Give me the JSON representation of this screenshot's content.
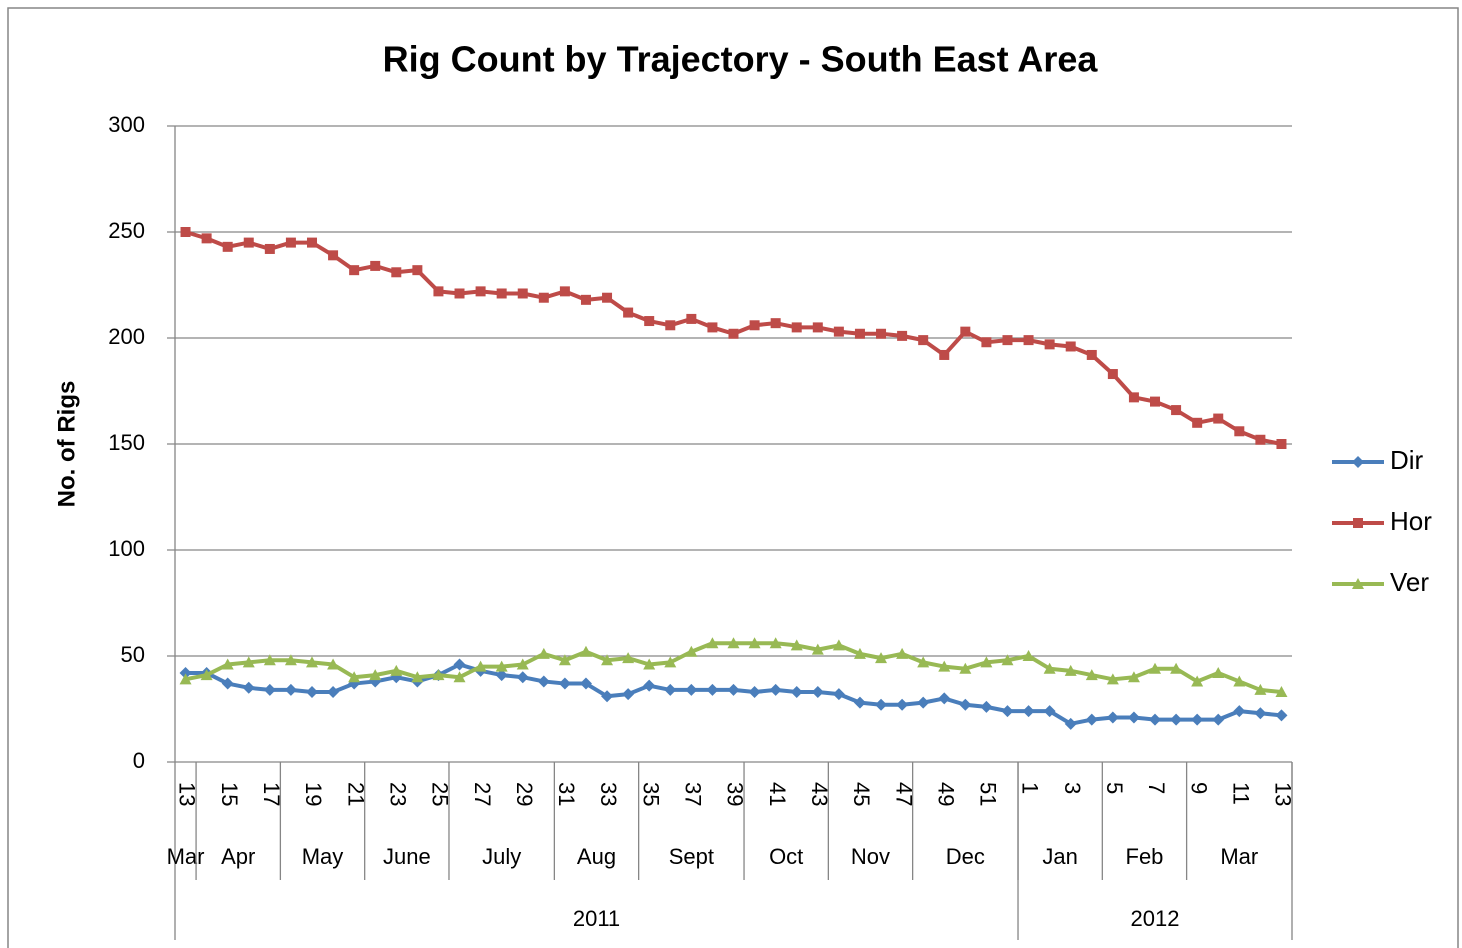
{
  "chart_data": {
    "type": "line",
    "title": "Rig Count by Trajectory - South East Area",
    "y_label": "No. of Rigs",
    "categories": [
      "13",
      null,
      "15",
      null,
      "17",
      null,
      "19",
      null,
      "21",
      null,
      "23",
      null,
      "25",
      null,
      "27",
      null,
      "29",
      null,
      "31",
      null,
      "33",
      null,
      "35",
      null,
      "37",
      null,
      "39",
      null,
      "41",
      null,
      "43",
      null,
      "45",
      null,
      "47",
      null,
      "49",
      null,
      "51",
      null,
      "1",
      null,
      "3",
      null,
      "5",
      null,
      "7",
      null,
      "9",
      null,
      "11",
      null,
      "13"
    ],
    "month_groups": [
      {
        "label": "Mar",
        "count": 1
      },
      {
        "label": "Apr",
        "count": 4
      },
      {
        "label": "May",
        "count": 4
      },
      {
        "label": "June",
        "count": 4
      },
      {
        "label": "July",
        "count": 5
      },
      {
        "label": "Aug",
        "count": 4
      },
      {
        "label": "Sept",
        "count": 5
      },
      {
        "label": "Oct",
        "count": 4
      },
      {
        "label": "Nov",
        "count": 4
      },
      {
        "label": "Dec",
        "count": 5
      },
      {
        "label": "Jan",
        "count": 4
      },
      {
        "label": "Feb",
        "count": 4
      },
      {
        "label": "Mar",
        "count": 5
      }
    ],
    "year_groups": [
      {
        "label": "2011",
        "count": 40
      },
      {
        "label": "2012",
        "count": 13
      }
    ],
    "series": [
      {
        "name": "Dir",
        "color": "#4a7ebb",
        "marker": "diamond",
        "values": [
          42,
          42,
          37,
          35,
          34,
          34,
          33,
          33,
          37,
          38,
          40,
          38,
          41,
          46,
          43,
          41,
          40,
          38,
          37,
          37,
          31,
          32,
          36,
          34,
          34,
          34,
          34,
          33,
          34,
          33,
          33,
          32,
          28,
          27,
          27,
          28,
          30,
          27,
          26,
          24,
          24,
          24,
          18,
          20,
          21,
          21,
          20,
          20,
          20,
          20,
          24,
          23,
          22
        ]
      },
      {
        "name": "Hor",
        "color": "#be4b48",
        "marker": "square",
        "values": [
          250,
          247,
          243,
          245,
          242,
          245,
          245,
          239,
          232,
          234,
          231,
          232,
          222,
          221,
          222,
          221,
          221,
          219,
          222,
          218,
          219,
          212,
          208,
          206,
          209,
          205,
          202,
          206,
          207,
          205,
          205,
          203,
          202,
          202,
          201,
          199,
          192,
          203,
          198,
          199,
          199,
          197,
          196,
          192,
          183,
          172,
          170,
          166,
          160,
          162,
          156,
          152,
          150
        ]
      },
      {
        "name": "Ver",
        "color": "#98b954",
        "marker": "triangle",
        "values": [
          39,
          41,
          46,
          47,
          48,
          48,
          47,
          46,
          40,
          41,
          43,
          40,
          41,
          40,
          45,
          45,
          46,
          51,
          48,
          52,
          48,
          49,
          46,
          47,
          52,
          56,
          56,
          56,
          56,
          55,
          53,
          55,
          51,
          49,
          51,
          47,
          45,
          44,
          47,
          48,
          50,
          44,
          43,
          41,
          39,
          40,
          44,
          44,
          38,
          42,
          38,
          34,
          33
        ]
      }
    ],
    "ylim": [
      0,
      300
    ],
    "yticks": [
      0,
      50,
      100,
      150,
      200,
      250,
      300
    ],
    "grid": true,
    "legend": "right"
  }
}
